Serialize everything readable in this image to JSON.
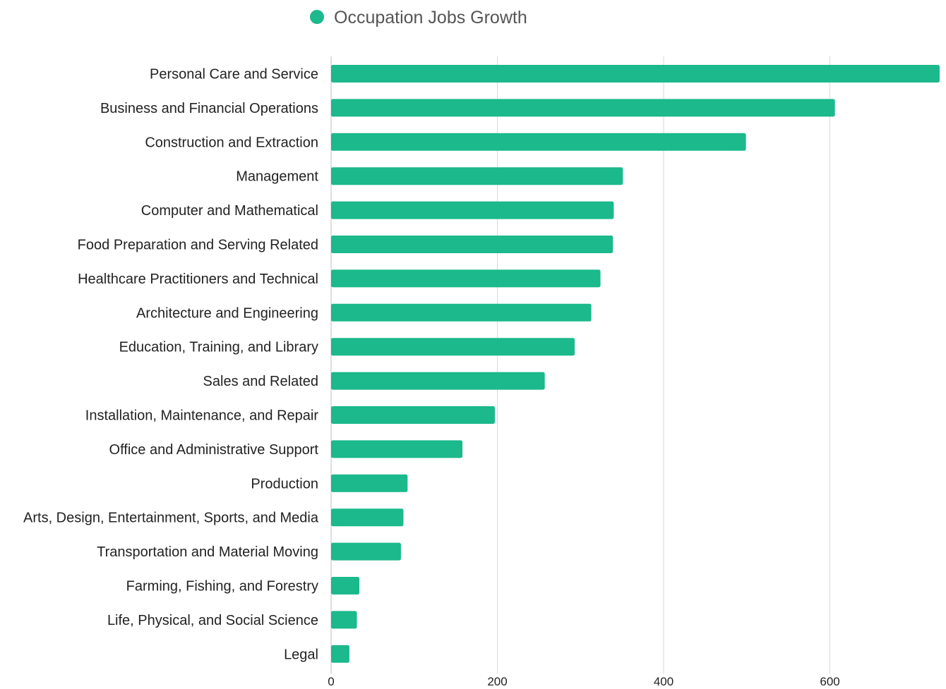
{
  "chart_data": {
    "type": "bar",
    "orientation": "horizontal",
    "categories": [
      "Personal Care and Service",
      "Business and Financial Operations",
      "Construction and Extraction",
      "Management",
      "Computer and Mathematical",
      "Food Preparation and Serving Related",
      "Healthcare Practitioners and Technical",
      "Architecture and Engineering",
      "Education, Training, and Library",
      "Sales and Related",
      "Installation, Maintenance, and Repair",
      "Office and Administrative Support",
      "Production",
      "Arts, Design, Entertainment, Sports, and Media",
      "Transportation and Material Moving",
      "Farming, Fishing, and Forestry",
      "Life, Physical, and Social Science",
      "Legal"
    ],
    "series": [
      {
        "name": "Occupation Jobs Growth",
        "color": "#1bb98b",
        "values": [
          732,
          606,
          499,
          351,
          340,
          339,
          324,
          313,
          293,
          257,
          197,
          158,
          92,
          87,
          84,
          34,
          31,
          22
        ]
      }
    ],
    "xlim": [
      0,
      732
    ],
    "xticks": [
      0,
      200,
      400,
      600
    ],
    "xtick_labels": [
      "0",
      "200",
      "400",
      "600"
    ],
    "grid": true,
    "legend_position": "top"
  }
}
